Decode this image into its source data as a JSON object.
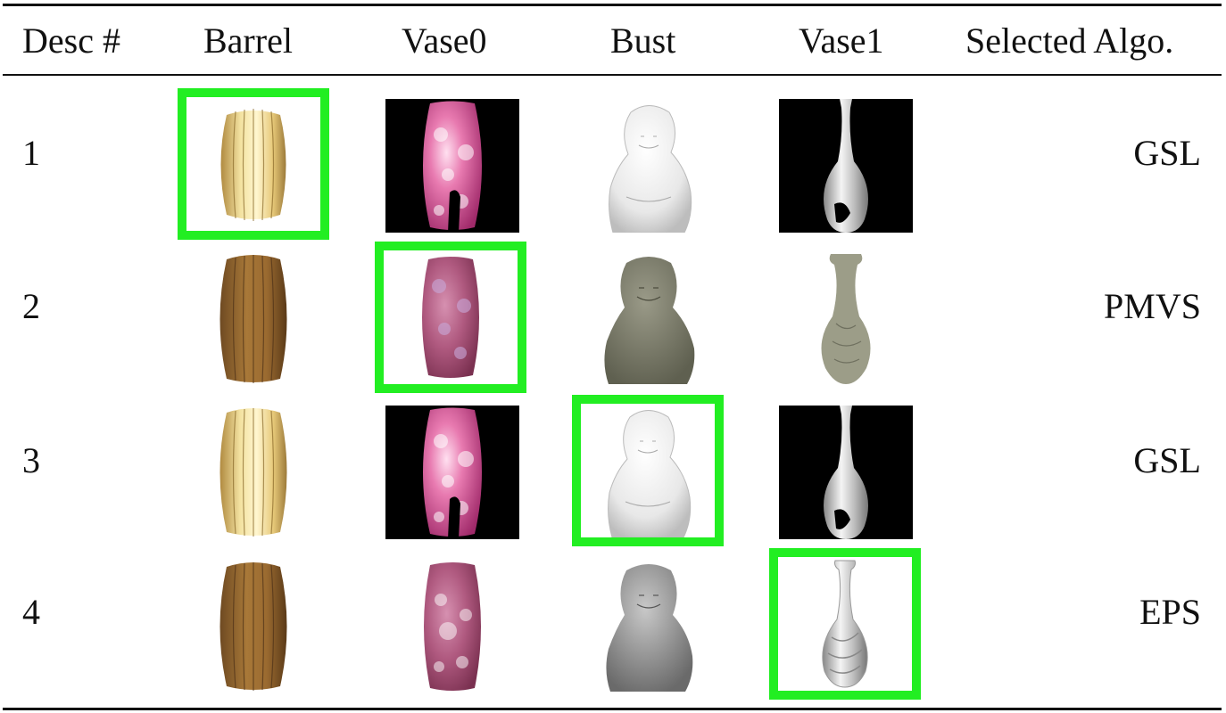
{
  "table": {
    "headers": [
      "Desc #",
      "Barrel",
      "Vase0",
      "Bust",
      "Vase1",
      "Selected Algo."
    ],
    "rows": [
      {
        "desc": "1",
        "selected_algo": "GSL",
        "selected_object": "Barrel"
      },
      {
        "desc": "2",
        "selected_algo": "PMVS",
        "selected_object": "Vase0"
      },
      {
        "desc": "3",
        "selected_algo": "GSL",
        "selected_object": "Bust"
      },
      {
        "desc": "4",
        "selected_algo": "EPS",
        "selected_object": "Vase1"
      }
    ]
  },
  "colors": {
    "highlight": "#22ee22",
    "rule": "#111111"
  }
}
